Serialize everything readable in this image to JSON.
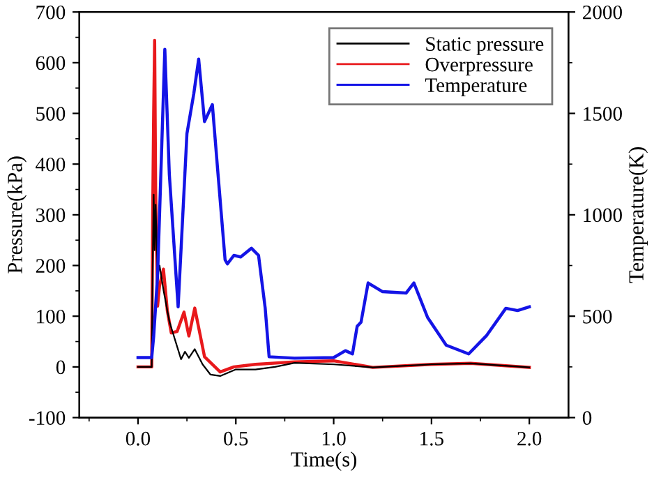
{
  "chart_data": {
    "type": "line",
    "xlabel": "Time(s)",
    "ylabel": "Pressure(kPa)",
    "y2label": "Temperature(K)",
    "xlim": [
      -0.3,
      2.2
    ],
    "xticks": [
      {
        "value": 0,
        "label": "0.0"
      },
      0.5,
      {
        "value": 1,
        "label": "1.0"
      },
      1.5,
      {
        "value": 2,
        "label": "2.0"
      }
    ],
    "ylim": [
      -100,
      700
    ],
    "yticks": [
      -100,
      0,
      100,
      200,
      300,
      400,
      500,
      600,
      700
    ],
    "y2lim": [
      0,
      2000
    ],
    "y2ticks": [
      0,
      500,
      1000,
      1500,
      2000
    ],
    "legend": "top right",
    "grid": false,
    "marker": "none",
    "line_style": "solid",
    "series": [
      {
        "name": "Static pressure",
        "color": "#000000",
        "x": [
          0,
          0.07,
          0.075,
          0.08,
          0.085,
          0.09,
          0.1,
          0.11,
          0.13,
          0.16,
          0.2,
          0.22,
          0.24,
          0.26,
          0.29,
          0.33,
          0.37,
          0.42,
          0.5,
          0.6,
          0.7,
          0.8,
          1.0,
          1.2,
          1.5,
          1.7,
          2.0
        ],
        "values": [
          0,
          0,
          200,
          340,
          230,
          320,
          180,
          200,
          152,
          90,
          40,
          15,
          30,
          18,
          35,
          5,
          -15,
          -18,
          -5,
          -5,
          0,
          8,
          5,
          -1,
          5,
          7,
          -1
        ]
      },
      {
        "name": "Overpressure",
        "color": "#e8191c",
        "x": [
          0,
          0.07,
          0.075,
          0.08,
          0.085,
          0.09,
          0.1,
          0.11,
          0.13,
          0.15,
          0.17,
          0.2,
          0.235,
          0.26,
          0.29,
          0.34,
          0.42,
          0.49,
          0.6,
          0.8,
          1.0,
          1.2,
          1.5,
          1.7,
          2.0
        ],
        "values": [
          0,
          0,
          300,
          500,
          644,
          350,
          120,
          160,
          193,
          110,
          67,
          70,
          108,
          61,
          116,
          20,
          -10,
          0,
          5,
          10,
          12,
          -1,
          5,
          7,
          -1
        ]
      },
      {
        "name": "Temperature",
        "color": "#1414e6",
        "axis": "y2",
        "x": [
          0,
          0.07,
          0.08,
          0.1,
          0.12,
          0.137,
          0.16,
          0.205,
          0.25,
          0.285,
          0.31,
          0.34,
          0.38,
          0.41,
          0.445,
          0.457,
          0.49,
          0.525,
          0.58,
          0.616,
          0.65,
          0.67,
          0.8,
          1.0,
          1.06,
          1.096,
          1.12,
          1.14,
          1.176,
          1.25,
          1.37,
          1.41,
          1.48,
          1.575,
          1.69,
          1.78,
          1.88,
          1.94,
          2.0
        ],
        "values": [
          296,
          296,
          400,
          700,
          1300,
          1816,
          1200,
          546,
          1400,
          1597,
          1768,
          1460,
          1543,
          1188,
          778,
          758,
          800,
          792,
          835,
          800,
          540,
          300,
          293,
          296,
          330,
          314,
          450,
          471,
          664,
          621,
          614,
          664,
          494,
          357,
          314,
          403,
          539,
          528,
          546
        ]
      }
    ]
  }
}
